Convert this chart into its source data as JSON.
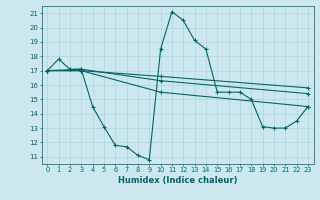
{
  "xlabel": "Humidex (Indice chaleur)",
  "bg_color": "#cce8ee",
  "line_color": "#006666",
  "grid_color": "#b0d8e0",
  "xlim": [
    -0.5,
    23.5
  ],
  "ylim": [
    10.5,
    21.5
  ],
  "yticks": [
    11,
    12,
    13,
    14,
    15,
    16,
    17,
    18,
    19,
    20,
    21
  ],
  "xticks": [
    0,
    1,
    2,
    3,
    4,
    5,
    6,
    7,
    8,
    9,
    10,
    11,
    12,
    13,
    14,
    15,
    16,
    17,
    18,
    19,
    20,
    21,
    22,
    23
  ],
  "curves": [
    {
      "x": [
        0,
        1,
        2,
        3,
        4,
        5,
        6,
        7,
        8,
        9,
        10,
        11,
        12,
        13,
        14,
        15,
        16,
        17,
        18,
        19,
        20,
        21,
        22,
        23
      ],
      "y": [
        17.0,
        17.8,
        17.1,
        17.1,
        14.5,
        13.1,
        11.8,
        11.7,
        11.1,
        10.8,
        18.5,
        21.1,
        20.5,
        19.1,
        18.5,
        15.5,
        15.5,
        15.5,
        15.0,
        13.1,
        13.0,
        13.0,
        13.5,
        14.5
      ]
    },
    {
      "x": [
        0,
        3,
        10,
        23
      ],
      "y": [
        17.0,
        17.0,
        16.6,
        15.8
      ]
    },
    {
      "x": [
        0,
        3,
        10,
        23
      ],
      "y": [
        17.0,
        17.1,
        16.3,
        15.4
      ]
    },
    {
      "x": [
        0,
        3,
        10,
        23
      ],
      "y": [
        17.0,
        17.0,
        15.5,
        14.5
      ]
    }
  ]
}
